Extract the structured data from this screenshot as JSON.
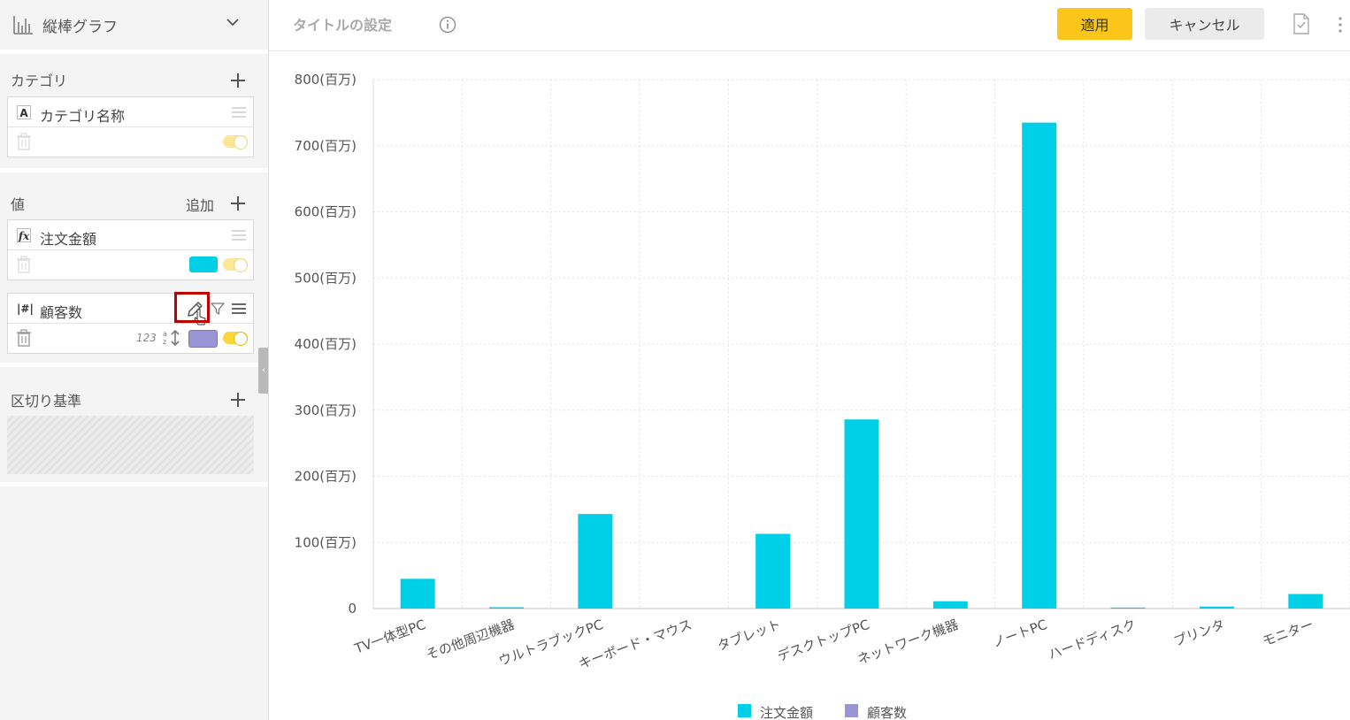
{
  "chart_type_selector": {
    "label": "縦棒グラフ"
  },
  "header": {
    "title_placeholder": "タイトルの設定",
    "apply_label": "適用",
    "cancel_label": "キャンセル"
  },
  "sections": {
    "category": {
      "title": "カテゴリ",
      "fields": [
        {
          "type_icon": "A",
          "name": "カテゴリ名称"
        }
      ]
    },
    "values": {
      "title": "値",
      "add_label": "追加",
      "fields": [
        {
          "type_icon": "fx",
          "name": "注文金額",
          "color": "#00cfe8"
        },
        {
          "type_icon": "|#|",
          "name": "顧客数",
          "color": "#9a96d6",
          "sort_label": "123"
        }
      ]
    },
    "breakdown": {
      "title": "区切り基準"
    }
  },
  "colors": {
    "accent": "#fcc51a",
    "series1": "#00cfe8",
    "series2": "#9a96d6",
    "highlight": "#c00000"
  },
  "chart_data": {
    "type": "bar",
    "categories": [
      "TV一体型PC",
      "その他周辺機器",
      "ウルトラブックPC",
      "キーボード・マウス",
      "タブレット",
      "デスクトップPC",
      "ネットワーク機器",
      "ノートPC",
      "ハードディスク",
      "プリンタ",
      "モニター"
    ],
    "series": [
      {
        "name": "注文金額",
        "color": "#00cfe8",
        "values": [
          45,
          2,
          143,
          0,
          113,
          286,
          11,
          735,
          1.5,
          3,
          22
        ]
      },
      {
        "name": "顧客数",
        "color": "#9a96d6",
        "values": [
          0,
          0,
          0,
          0,
          0,
          0,
          0,
          0,
          0,
          0,
          0
        ]
      }
    ],
    "yticks": [
      0,
      100,
      200,
      300,
      400,
      500,
      600,
      700,
      800
    ],
    "ytick_labels": [
      "0",
      "100(百万)",
      "200(百万)",
      "300(百万)",
      "400(百万)",
      "500(百万)",
      "600(百万)",
      "700(百万)",
      "800(百万)"
    ],
    "ylim": [
      0,
      800
    ],
    "grid": true,
    "legend": "bottom-center"
  }
}
